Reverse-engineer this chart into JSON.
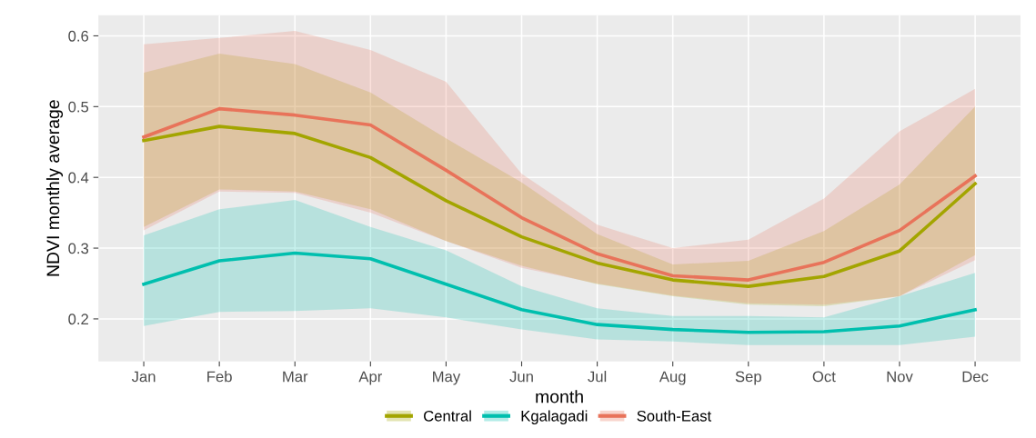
{
  "chart_data": {
    "type": "line",
    "xlabel": "month",
    "ylabel": "NDVI monthly average",
    "categories": [
      "Jan",
      "Feb",
      "Mar",
      "Apr",
      "May",
      "Jun",
      "Jul",
      "Aug",
      "Sep",
      "Oct",
      "Nov",
      "Dec"
    ],
    "series": [
      {
        "name": "Central",
        "color": "#a3a500",
        "values": [
          0.452,
          0.472,
          0.462,
          0.428,
          0.367,
          0.316,
          0.279,
          0.255,
          0.246,
          0.26,
          0.296,
          0.391
        ],
        "lower": [
          0.33,
          0.383,
          0.38,
          0.355,
          0.31,
          0.275,
          0.249,
          0.232,
          0.22,
          0.218,
          0.232,
          0.29
        ],
        "upper": [
          0.548,
          0.575,
          0.56,
          0.52,
          0.455,
          0.393,
          0.32,
          0.277,
          0.282,
          0.324,
          0.39,
          0.5
        ]
      },
      {
        "name": "Kgalagadi",
        "color": "#00bfae",
        "values": [
          0.249,
          0.282,
          0.293,
          0.285,
          0.249,
          0.213,
          0.192,
          0.185,
          0.181,
          0.182,
          0.19,
          0.213
        ],
        "lower": [
          0.19,
          0.21,
          0.211,
          0.215,
          0.202,
          0.185,
          0.171,
          0.168,
          0.163,
          0.163,
          0.163,
          0.175
        ],
        "upper": [
          0.318,
          0.355,
          0.368,
          0.33,
          0.297,
          0.246,
          0.215,
          0.204,
          0.204,
          0.202,
          0.232,
          0.265
        ]
      },
      {
        "name": "South-East",
        "color": "#e8735a",
        "values": [
          0.457,
          0.497,
          0.488,
          0.474,
          0.41,
          0.343,
          0.292,
          0.261,
          0.255,
          0.28,
          0.325,
          0.402
        ],
        "lower": [
          0.325,
          0.38,
          0.378,
          0.35,
          0.31,
          0.272,
          0.25,
          0.233,
          0.222,
          0.22,
          0.232,
          0.283
        ],
        "upper": [
          0.588,
          0.597,
          0.607,
          0.58,
          0.535,
          0.405,
          0.333,
          0.3,
          0.312,
          0.37,
          0.465,
          0.525
        ]
      }
    ],
    "ylim": [
      0.14,
      0.629
    ],
    "yticks": [
      0.2,
      0.3,
      0.4,
      0.5,
      0.6
    ],
    "grid": true,
    "legend": "bottom",
    "line_style": "solid",
    "marker": "none"
  }
}
